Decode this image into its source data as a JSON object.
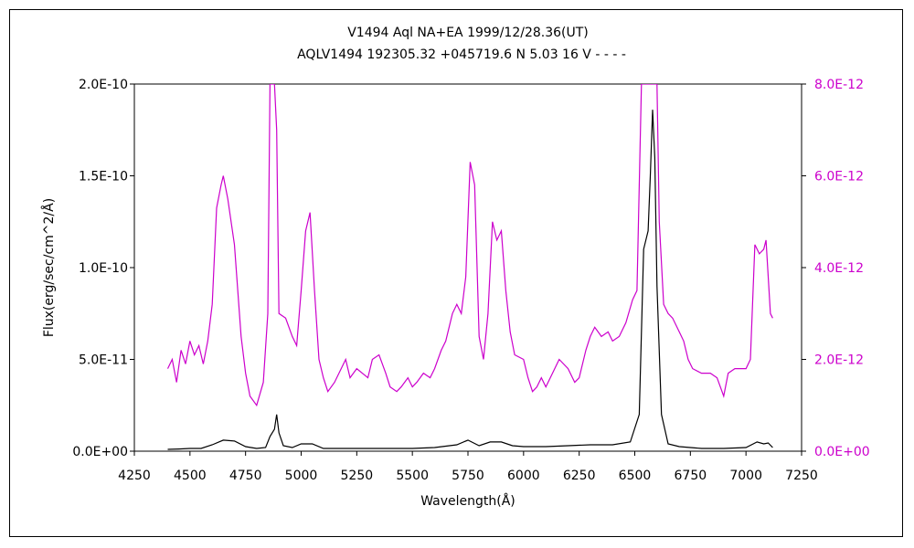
{
  "chart_data": {
    "type": "line",
    "title": "V1494 Aql    NA+EA    1999/12/28.36(UT)",
    "subtitle": "AQLV1494 192305.32 +045719.6 N 5.03 16 V - - - -",
    "xlabel": "Wavelength(Å)",
    "ylabel": "Flux(erg/sec/cm^2/Å)",
    "xlim": [
      4250,
      7250
    ],
    "ylim_left": [
      0,
      2e-10
    ],
    "ylim_right": [
      0,
      8e-12
    ],
    "x_ticks": [
      "4250",
      "4500",
      "4750",
      "5000",
      "5250",
      "5500",
      "5750",
      "6000",
      "6250",
      "6500",
      "6750",
      "7000",
      "7250"
    ],
    "y_left_ticks": [
      "0.0E+00",
      "5.0E-11",
      "1.0E-10",
      "1.5E-10",
      "2.0E-10"
    ],
    "y_right_ticks": [
      "0.0E+00",
      "2.0E-12",
      "4.0E-12",
      "6.0E-12",
      "8.0E-12"
    ],
    "grid": false,
    "colors": {
      "left_series": "#000000",
      "right_series": "#cc00cc"
    },
    "series": [
      {
        "axis": "left",
        "color": "#000000",
        "points": [
          [
            4400,
            1e-12
          ],
          [
            4450,
            1.2e-12
          ],
          [
            4500,
            1.5e-12
          ],
          [
            4550,
            1.5e-12
          ],
          [
            4600,
            3.5e-12
          ],
          [
            4650,
            6e-12
          ],
          [
            4700,
            5.5e-12
          ],
          [
            4750,
            2.5e-12
          ],
          [
            4800,
            1.5e-12
          ],
          [
            4840,
            2e-12
          ],
          [
            4860,
            8e-12
          ],
          [
            4880,
            1.2e-11
          ],
          [
            4890,
            2e-11
          ],
          [
            4900,
            1e-11
          ],
          [
            4920,
            3e-12
          ],
          [
            4960,
            2e-12
          ],
          [
            5000,
            4e-12
          ],
          [
            5050,
            4e-12
          ],
          [
            5100,
            1.5e-12
          ],
          [
            5200,
            1.5e-12
          ],
          [
            5300,
            1.5e-12
          ],
          [
            5400,
            1.5e-12
          ],
          [
            5500,
            1.5e-12
          ],
          [
            5600,
            2e-12
          ],
          [
            5700,
            3.5e-12
          ],
          [
            5750,
            6e-12
          ],
          [
            5800,
            3e-12
          ],
          [
            5850,
            5e-12
          ],
          [
            5900,
            5e-12
          ],
          [
            5950,
            3e-12
          ],
          [
            6000,
            2.5e-12
          ],
          [
            6100,
            2.5e-12
          ],
          [
            6200,
            3e-12
          ],
          [
            6300,
            3.5e-12
          ],
          [
            6400,
            3.5e-12
          ],
          [
            6480,
            5e-12
          ],
          [
            6520,
            2e-11
          ],
          [
            6540,
            1.1e-10
          ],
          [
            6560,
            1.2e-10
          ],
          [
            6570,
            1.5e-10
          ],
          [
            6580,
            1.86e-10
          ],
          [
            6590,
            1.6e-10
          ],
          [
            6600,
            9e-11
          ],
          [
            6620,
            2e-11
          ],
          [
            6650,
            4e-12
          ],
          [
            6700,
            2.5e-12
          ],
          [
            6800,
            1.5e-12
          ],
          [
            6900,
            1.5e-12
          ],
          [
            7000,
            2e-12
          ],
          [
            7050,
            5e-12
          ],
          [
            7080,
            4e-12
          ],
          [
            7100,
            4.5e-12
          ],
          [
            7120,
            2e-12
          ]
        ]
      },
      {
        "axis": "right",
        "color": "#cc00cc",
        "points": [
          [
            4400,
            1.8e-12
          ],
          [
            4420,
            2e-12
          ],
          [
            4440,
            1.5e-12
          ],
          [
            4460,
            2.2e-12
          ],
          [
            4480,
            1.9e-12
          ],
          [
            4500,
            2.4e-12
          ],
          [
            4520,
            2.1e-12
          ],
          [
            4540,
            2.3e-12
          ],
          [
            4560,
            1.9e-12
          ],
          [
            4580,
            2.4e-12
          ],
          [
            4600,
            3.2e-12
          ],
          [
            4620,
            5.3e-12
          ],
          [
            4640,
            5.8e-12
          ],
          [
            4650,
            6e-12
          ],
          [
            4670,
            5.5e-12
          ],
          [
            4700,
            4.5e-12
          ],
          [
            4730,
            2.5e-12
          ],
          [
            4750,
            1.7e-12
          ],
          [
            4770,
            1.2e-12
          ],
          [
            4800,
            1e-12
          ],
          [
            4830,
            1.5e-12
          ],
          [
            4850,
            3e-12
          ],
          [
            4860,
            8e-12
          ],
          [
            4880,
            8e-12
          ],
          [
            4890,
            7e-12
          ],
          [
            4900,
            3e-12
          ],
          [
            4930,
            2.9e-12
          ],
          [
            4960,
            2.5e-12
          ],
          [
            4980,
            2.3e-12
          ],
          [
            5000,
            3.5e-12
          ],
          [
            5020,
            4.8e-12
          ],
          [
            5040,
            5.2e-12
          ],
          [
            5060,
            3.5e-12
          ],
          [
            5080,
            2e-12
          ],
          [
            5100,
            1.6e-12
          ],
          [
            5120,
            1.3e-12
          ],
          [
            5150,
            1.5e-12
          ],
          [
            5180,
            1.8e-12
          ],
          [
            5200,
            2e-12
          ],
          [
            5220,
            1.6e-12
          ],
          [
            5250,
            1.8e-12
          ],
          [
            5300,
            1.6e-12
          ],
          [
            5320,
            2e-12
          ],
          [
            5350,
            2.1e-12
          ],
          [
            5380,
            1.7e-12
          ],
          [
            5400,
            1.4e-12
          ],
          [
            5430,
            1.3e-12
          ],
          [
            5450,
            1.4e-12
          ],
          [
            5480,
            1.6e-12
          ],
          [
            5500,
            1.4e-12
          ],
          [
            5520,
            1.5e-12
          ],
          [
            5550,
            1.7e-12
          ],
          [
            5580,
            1.6e-12
          ],
          [
            5600,
            1.8e-12
          ],
          [
            5630,
            2.2e-12
          ],
          [
            5650,
            2.4e-12
          ],
          [
            5680,
            3e-12
          ],
          [
            5700,
            3.2e-12
          ],
          [
            5720,
            3e-12
          ],
          [
            5740,
            3.8e-12
          ],
          [
            5760,
            6.3e-12
          ],
          [
            5780,
            5.8e-12
          ],
          [
            5800,
            2.5e-12
          ],
          [
            5820,
            2e-12
          ],
          [
            5840,
            3e-12
          ],
          [
            5860,
            5e-12
          ],
          [
            5880,
            4.6e-12
          ],
          [
            5900,
            4.8e-12
          ],
          [
            5920,
            3.5e-12
          ],
          [
            5940,
            2.6e-12
          ],
          [
            5960,
            2.1e-12
          ],
          [
            6000,
            2e-12
          ],
          [
            6020,
            1.6e-12
          ],
          [
            6040,
            1.3e-12
          ],
          [
            6060,
            1.4e-12
          ],
          [
            6080,
            1.6e-12
          ],
          [
            6100,
            1.4e-12
          ],
          [
            6130,
            1.7e-12
          ],
          [
            6160,
            2e-12
          ],
          [
            6200,
            1.8e-12
          ],
          [
            6230,
            1.5e-12
          ],
          [
            6250,
            1.6e-12
          ],
          [
            6280,
            2.2e-12
          ],
          [
            6300,
            2.5e-12
          ],
          [
            6320,
            2.7e-12
          ],
          [
            6350,
            2.5e-12
          ],
          [
            6380,
            2.6e-12
          ],
          [
            6400,
            2.4e-12
          ],
          [
            6430,
            2.5e-12
          ],
          [
            6460,
            2.8e-12
          ],
          [
            6490,
            3.3e-12
          ],
          [
            6510,
            3.5e-12
          ],
          [
            6530,
            8e-12
          ],
          [
            6560,
            8e-12
          ],
          [
            6600,
            8e-12
          ],
          [
            6610,
            5e-12
          ],
          [
            6630,
            3.2e-12
          ],
          [
            6650,
            3e-12
          ],
          [
            6670,
            2.9e-12
          ],
          [
            6700,
            2.6e-12
          ],
          [
            6720,
            2.4e-12
          ],
          [
            6740,
            2e-12
          ],
          [
            6760,
            1.8e-12
          ],
          [
            6800,
            1.7e-12
          ],
          [
            6840,
            1.7e-12
          ],
          [
            6870,
            1.6e-12
          ],
          [
            6900,
            1.2e-12
          ],
          [
            6920,
            1.7e-12
          ],
          [
            6950,
            1.8e-12
          ],
          [
            6980,
            1.8e-12
          ],
          [
            7000,
            1.8e-12
          ],
          [
            7020,
            2e-12
          ],
          [
            7040,
            4.5e-12
          ],
          [
            7060,
            4.3e-12
          ],
          [
            7080,
            4.4e-12
          ],
          [
            7090,
            4.6e-12
          ],
          [
            7100,
            3.8e-12
          ],
          [
            7110,
            3e-12
          ],
          [
            7120,
            2.9e-12
          ]
        ]
      }
    ]
  }
}
